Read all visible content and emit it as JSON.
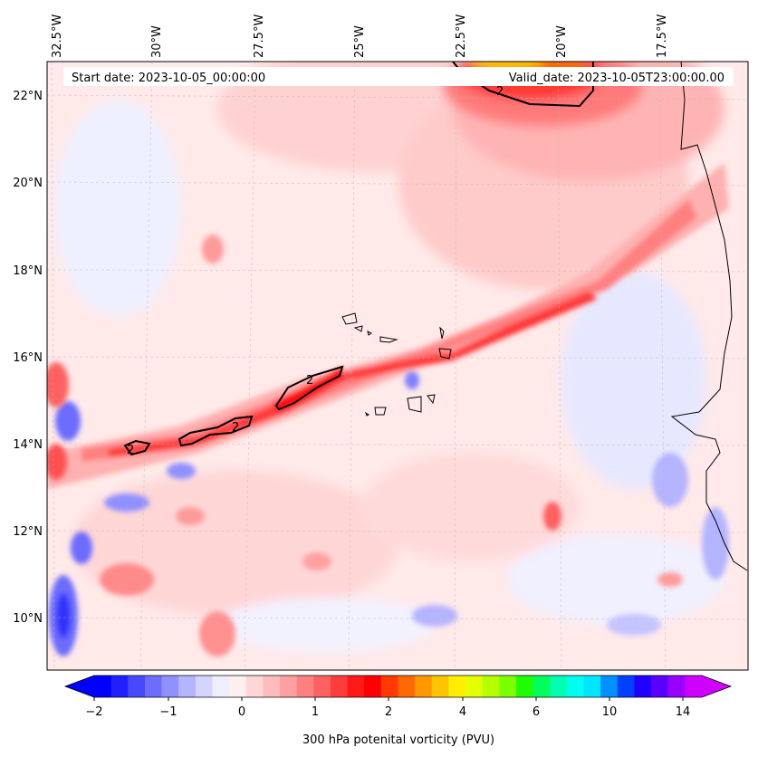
{
  "header": {
    "start_date": "Start date: 2023-10-05_00:00:00",
    "valid_date": "Valid_date: 2023-10-05T23:00:00.00"
  },
  "map": {
    "longitude_labels": [
      "32.5°W",
      "30°W",
      "27.5°W",
      "25°W",
      "22.5°W",
      "20°W",
      "17.5°W"
    ],
    "latitude_labels": [
      "22°N",
      "20°N",
      "18°N",
      "16°N",
      "14°N",
      "12°N",
      "10°N"
    ],
    "contour_labels": [
      "2",
      "2",
      "2",
      "2"
    ]
  },
  "colorbar": {
    "tick_labels": [
      "−2",
      "−1",
      "0",
      "1",
      "2",
      "4",
      "6",
      "10",
      "14"
    ],
    "label": "300 hPa potenital vorticity (PVU)",
    "colors": [
      "#0000ff",
      "#2020ff",
      "#4848ff",
      "#6c6cff",
      "#9090ff",
      "#b4b4ff",
      "#d4d4ff",
      "#eeeeff",
      "#ffeeee",
      "#ffd6d6",
      "#ffbcbc",
      "#ffa0a0",
      "#ff8080",
      "#ff6060",
      "#ff3c3c",
      "#ff1a1a",
      "#ff0000",
      "#ff3a00",
      "#ff6a00",
      "#ff9800",
      "#ffc400",
      "#ffee00",
      "#e4ff00",
      "#b4ff00",
      "#7cff00",
      "#20ff00",
      "#00ff5a",
      "#00ffb0",
      "#00fff0",
      "#00e6ff",
      "#0090ff",
      "#0040ff",
      "#2000ff",
      "#5a00ff",
      "#9a00ff",
      "#d000ff"
    ]
  }
}
